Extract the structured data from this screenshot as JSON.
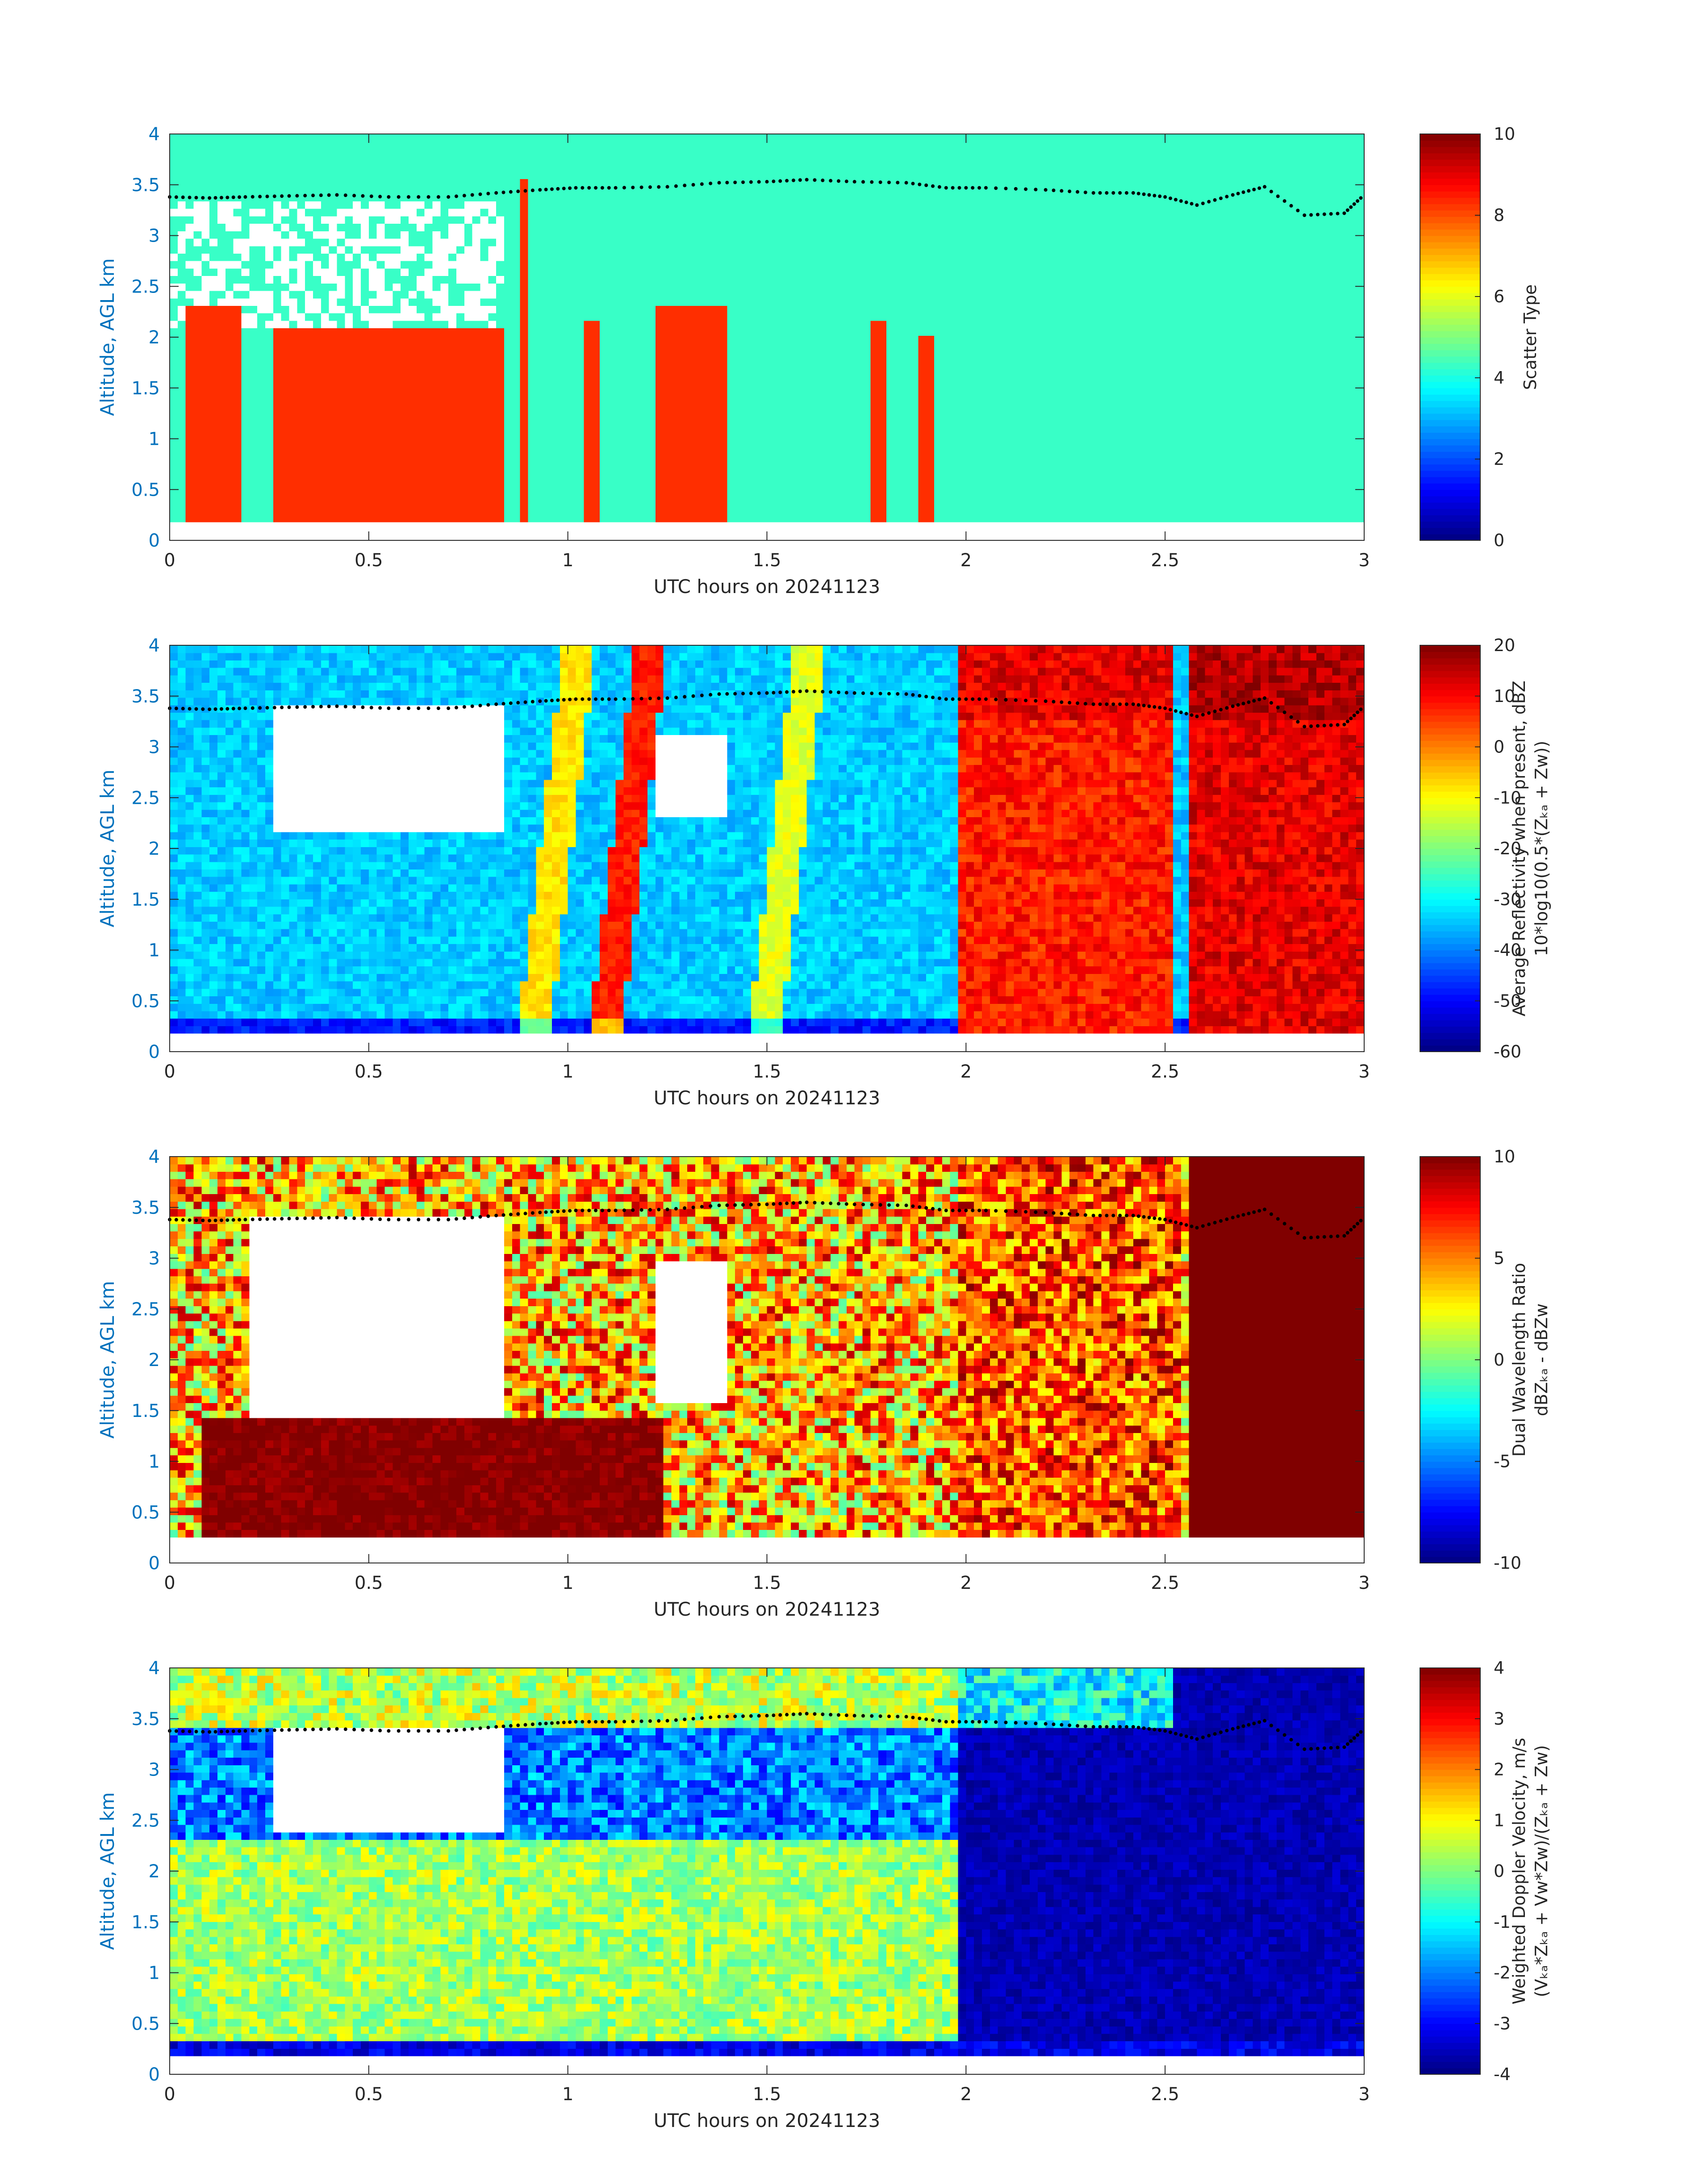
{
  "figure": {
    "x_axis_label": "UTC hours on 20241123",
    "y_axis_label": "Altitude, AGL km",
    "x_ticks": [
      "0",
      "0.5",
      "1",
      "1.5",
      "2",
      "2.5",
      "3"
    ],
    "y_ticks": [
      "0",
      "0.5",
      "1",
      "1.5",
      "2",
      "2.5",
      "3",
      "3.5",
      "4"
    ]
  },
  "colors": {
    "ylabel": "#0072BD",
    "scatter_cyan": "#2BF5DC",
    "scatter_red": "#FF4000",
    "cloud_top_dots": "#000000"
  },
  "chart_data": [
    {
      "type": "heatmap",
      "name": "Scatter Type",
      "colorbar": {
        "label_lines": [
          "Scatter Type"
        ],
        "ticks": [
          "0",
          "2",
          "4",
          "6",
          "8",
          "10"
        ],
        "range": [
          0,
          10
        ],
        "colormap": "jet"
      },
      "xlabel": "UTC hours on 20241123",
      "ylabel": "Altitude, AGL km",
      "xlim": [
        0,
        3
      ],
      "ylim": [
        0,
        4
      ],
      "base_value": 4.3,
      "red_value": 8.3,
      "red_columns": [
        {
          "x": [
            0.05,
            0.17
          ],
          "top": 2.3
        },
        {
          "x": [
            0.27,
            0.84
          ],
          "top": 2.1
        },
        {
          "x": [
            0.88,
            0.9
          ],
          "top": 3.55
        },
        {
          "x": [
            1.04,
            1.07
          ],
          "top": 2.2
        },
        {
          "x": [
            1.22,
            1.4
          ],
          "top": 2.3
        },
        {
          "x": [
            1.77,
            1.8
          ],
          "top": 2.2
        },
        {
          "x": [
            1.87,
            1.92
          ],
          "top": 2.0
        }
      ]
    },
    {
      "type": "heatmap",
      "name": "Average Reflectivity",
      "colorbar": {
        "label_lines": [
          "Average Reflectivity when present, dBZ",
          "10*log10(0.5*(Zₖₐ + Zᴡ))"
        ],
        "ticks": [
          "-60",
          "-50",
          "-40",
          "-30",
          "-20",
          "-10",
          "0",
          "10",
          "20"
        ],
        "range": [
          -60,
          20
        ],
        "colormap": "jet"
      },
      "xlabel": "UTC hours on 20241123",
      "ylabel": "Altitude, AGL km",
      "xlim": [
        0,
        3
      ],
      "ylim": [
        0,
        4
      ],
      "background_range_dbz": [
        -40,
        -28
      ],
      "streaks_dbz": [
        {
          "x": 1.15,
          "value": 8
        },
        {
          "x": 1.55,
          "value": -12
        },
        {
          "x": 0.97,
          "value": -8
        }
      ],
      "high_regions_dbz": [
        {
          "x": [
            1.97,
            2.53
          ],
          "value": 8
        },
        {
          "x": [
            2.56,
            3.0
          ],
          "value": 12
        }
      ]
    },
    {
      "type": "heatmap",
      "name": "Dual Wavelength Ratio",
      "colorbar": {
        "label_lines": [
          "Dual Wavelength Ratio",
          "dBZₖₐ - dBZᴡ"
        ],
        "ticks": [
          "-10",
          "-5",
          "0",
          "5",
          "10"
        ],
        "range": [
          -10,
          10
        ],
        "colormap": "jet"
      },
      "xlabel": "UTC hours on 20241123",
      "ylabel": "Altitude, AGL km",
      "xlim": [
        0,
        3
      ],
      "ylim": [
        0,
        4
      ],
      "low_layer_dwr": 10,
      "low_layer_top_km": 1.4
    },
    {
      "type": "heatmap",
      "name": "Weighted Doppler Velocity",
      "colorbar": {
        "label_lines": [
          "Weighted Doppler Velocity, m/s",
          "(Vₖₐ*Zₖₐ + Vᴡ*Zᴡ)/(Zₖₐ + Zᴡ)"
        ],
        "ticks": [
          "-4",
          "-3",
          "-2",
          "-1",
          "0",
          "1",
          "2",
          "3",
          "4"
        ],
        "range": [
          -4,
          4
        ],
        "colormap": "jet"
      },
      "xlabel": "UTC hours on 20241123",
      "ylabel": "Altitude, AGL km",
      "xlim": [
        0,
        3
      ],
      "ylim": [
        0,
        4
      ],
      "snow_velocity_ms": 0.3,
      "rain_velocity_ms": -3.6
    }
  ],
  "cloud_top_km": [
    {
      "x": 0.0,
      "y": 3.38
    },
    {
      "x": 0.1,
      "y": 3.37
    },
    {
      "x": 0.19,
      "y": 3.38
    },
    {
      "x": 0.3,
      "y": 3.39
    },
    {
      "x": 0.42,
      "y": 3.4
    },
    {
      "x": 0.55,
      "y": 3.38
    },
    {
      "x": 0.7,
      "y": 3.38
    },
    {
      "x": 0.82,
      "y": 3.42
    },
    {
      "x": 0.93,
      "y": 3.45
    },
    {
      "x": 1.02,
      "y": 3.47
    },
    {
      "x": 1.12,
      "y": 3.47
    },
    {
      "x": 1.25,
      "y": 3.48
    },
    {
      "x": 1.38,
      "y": 3.52
    },
    {
      "x": 1.5,
      "y": 3.53
    },
    {
      "x": 1.6,
      "y": 3.55
    },
    {
      "x": 1.72,
      "y": 3.53
    },
    {
      "x": 1.85,
      "y": 3.52
    },
    {
      "x": 1.95,
      "y": 3.47
    },
    {
      "x": 2.05,
      "y": 3.47
    },
    {
      "x": 2.2,
      "y": 3.45
    },
    {
      "x": 2.32,
      "y": 3.42
    },
    {
      "x": 2.42,
      "y": 3.42
    },
    {
      "x": 2.5,
      "y": 3.38
    },
    {
      "x": 2.58,
      "y": 3.3
    },
    {
      "x": 2.67,
      "y": 3.4
    },
    {
      "x": 2.75,
      "y": 3.48
    },
    {
      "x": 2.85,
      "y": 3.2
    },
    {
      "x": 2.95,
      "y": 3.22
    },
    {
      "x": 3.0,
      "y": 3.4
    }
  ]
}
